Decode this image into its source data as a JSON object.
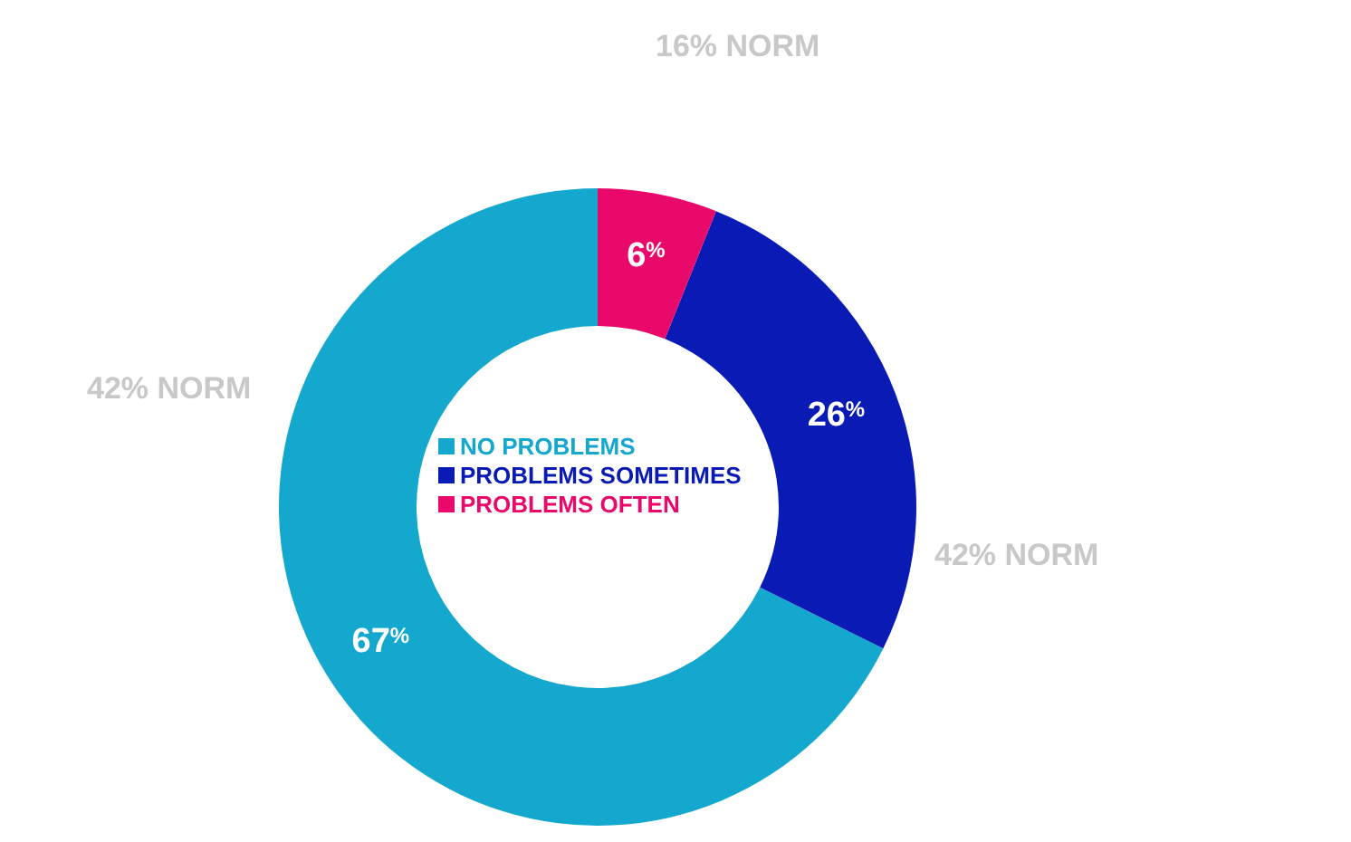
{
  "chart_data": {
    "type": "donut",
    "categories": [
      "NO PROBLEMS",
      "PROBLEMS SOMETIMES",
      "PROBLEMS OFTEN"
    ],
    "values": [
      67,
      26,
      6
    ],
    "colors": [
      "#14a8cf",
      "#0a1ab4",
      "#e8096a"
    ],
    "value_labels": [
      "67%",
      "26%",
      "6%"
    ],
    "annotations": [
      "42% NORM",
      "42% NORM",
      "16% NORM"
    ],
    "legend": "center"
  }
}
